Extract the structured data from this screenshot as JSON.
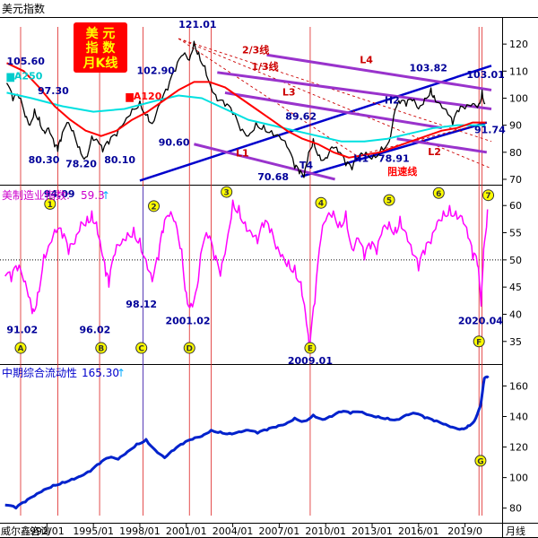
{
  "title": "美元指数",
  "badge": {
    "lines": [
      "美 元",
      "指 数",
      "月K线"
    ],
    "bg": "#ff0000",
    "fg": "#ffff00"
  },
  "colors": {
    "price": "#000000",
    "ma120": "#ff0000",
    "ma250": "#00e0e0",
    "blue": "#0000cc",
    "purple": "#9933cc",
    "dred": "#cc0000",
    "magenta": "#ff00ff",
    "cyan": "#00ffff",
    "circle": "#ffff00",
    "label": "#000099",
    "liquidity": "#0022cc"
  },
  "x_axis": {
    "ticks": [
      "1992/01",
      "1995/01",
      "1998/01",
      "2001/01",
      "2004/01",
      "2007/01",
      "2010/01",
      "2013/01",
      "2016/01",
      "2019/0"
    ],
    "first_tick_visible": "992/01",
    "left_label": "威尔鑫咨询",
    "right_label": "月线"
  },
  "chart_data": [
    {
      "type": "line",
      "title": "美元指数",
      "yticks": [
        70,
        80,
        90,
        100,
        110,
        120
      ],
      "ylim": [
        68,
        129
      ],
      "xlim": [
        1989.2,
        2020.7
      ],
      "series": [
        {
          "name": "",
          "role": "price",
          "x": [
            1989.4,
            1989.8,
            1990.2,
            1990.6,
            1990.9,
            1991.2,
            1991.5,
            1991.8,
            1992.1,
            1992.5,
            1992.7,
            1992.9,
            1993.3,
            1993.7,
            1994.1,
            1994.5,
            1994.9,
            1995.3,
            1995.6,
            1996.0,
            1996.5,
            1997.0,
            1997.5,
            1998.0,
            1998.5,
            1998.8,
            1999.3,
            1999.8,
            2000.3,
            2000.8,
            2001.2,
            2001.5,
            2001.8,
            2002.2,
            2002.6,
            2003.0,
            2003.5,
            2004.0,
            2004.5,
            2005.0,
            2005.5,
            2006.0,
            2006.5,
            2007.0,
            2007.5,
            2008.0,
            2008.3,
            2008.6,
            2008.9,
            2009.2,
            2009.6,
            2010.0,
            2010.4,
            2010.8,
            2011.3,
            2011.7,
            2012.2,
            2012.6,
            2013.1,
            2013.6,
            2014.1,
            2014.5,
            2014.8,
            2015.2,
            2015.6,
            2016.0,
            2016.4,
            2016.8,
            2017.0,
            2017.4,
            2017.9,
            2018.2,
            2018.6,
            2019.0,
            2019.5,
            2019.9,
            2020.1,
            2020.3
          ],
          "y": [
            105.6,
            99,
            100,
            93,
            90,
            96,
            93,
            88,
            89,
            82,
            80.3,
            84,
            91,
            88,
            82,
            78.2,
            86,
            84,
            80.1,
            83,
            86,
            91,
            96,
            99,
            94,
            90.6,
            98,
            103,
            110,
            116,
            114,
            121,
            117,
            112,
            104,
            99,
            97,
            94,
            88,
            86,
            91,
            90,
            88,
            86,
            82,
            74,
            72,
            70.68,
            80,
            85,
            79,
            78,
            82,
            80,
            75,
            73.5,
            79,
            80,
            78.91,
            82,
            84,
            96,
            98,
            97,
            99,
            96,
            100,
            103.82,
            101,
            98,
            94,
            90,
            95,
            96,
            98,
            98,
            103.01,
            98
          ],
          "color": "#000000"
        },
        {
          "name": "MA250",
          "role": "ma250",
          "x": [
            1989.4,
            1991,
            1993,
            1995,
            1997,
            1999,
            2000.5,
            2002,
            2003.5,
            2005,
            2006.5,
            2008,
            2009.5,
            2011,
            2012.5,
            2014,
            2015.5,
            2017,
            2018.5,
            2020.3
          ],
          "y": [
            102,
            100,
            97,
            95,
            96,
            99,
            101,
            100,
            96,
            92,
            90,
            88,
            86,
            84,
            84,
            85,
            87,
            89,
            90,
            90
          ],
          "color": "#00e0e0"
        },
        {
          "name": "MA120",
          "role": "ma120",
          "x": [
            1989.4,
            1990.5,
            1991.5,
            1992.5,
            1993.5,
            1994.5,
            1995.5,
            1996.5,
            1997.5,
            1998.5,
            1999.5,
            2000.5,
            2001.5,
            2002.5,
            2003.5,
            2004.5,
            2005.5,
            2006.5,
            2007.5,
            2008.5,
            2009.5,
            2010.5,
            2011.5,
            2012.5,
            2013.5,
            2014.5,
            2015.5,
            2016.5,
            2017.5,
            2018.5,
            2019.5,
            2020.3
          ],
          "y": [
            113,
            110,
            104,
            97,
            92,
            88,
            86,
            88,
            92,
            95,
            99,
            103,
            106,
            106,
            104,
            100,
            96,
            92,
            88,
            85,
            83,
            80,
            78,
            79,
            80,
            82,
            84,
            86,
            88,
            89,
            91,
            91
          ],
          "color": "#ff0000"
        }
      ],
      "annotations": [
        {
          "text": "105.60",
          "x": 1989.4,
          "y": 112.5,
          "color": "#000099"
        },
        {
          "text": "▆A250",
          "x": 1989.4,
          "y": 107,
          "color": "#00cccc"
        },
        {
          "text": "97.30",
          "x": 1991.4,
          "y": 101.5,
          "color": "#000099"
        },
        {
          "text": "80.30",
          "x": 1990.8,
          "y": 76,
          "color": "#000099"
        },
        {
          "text": "78.20",
          "x": 1993.2,
          "y": 74.5,
          "color": "#000099"
        },
        {
          "text": "80.10",
          "x": 1995.7,
          "y": 76,
          "color": "#000099"
        },
        {
          "text": "▆A120",
          "x": 1997.1,
          "y": 99.5,
          "color": "#ff0000"
        },
        {
          "text": "102.90",
          "x": 1997.8,
          "y": 109,
          "color": "#000099"
        },
        {
          "text": "90.60",
          "x": 1999.2,
          "y": 82.5,
          "color": "#000099"
        },
        {
          "text": "121.01",
          "x": 2000.5,
          "y": 126,
          "color": "#000099"
        },
        {
          "text": "2/3线",
          "x": 2004.6,
          "y": 116.5,
          "color": "#cc0000"
        },
        {
          "text": "1/3线",
          "x": 2005.2,
          "y": 110.5,
          "color": "#cc0000"
        },
        {
          "text": "L4",
          "x": 2012.2,
          "y": 113,
          "color": "#cc0000"
        },
        {
          "text": "L3",
          "x": 2007.2,
          "y": 101,
          "color": "#cc0000"
        },
        {
          "text": "103.82",
          "x": 2015.4,
          "y": 110,
          "color": "#000099"
        },
        {
          "text": "103.01",
          "x": 2019.1,
          "y": 107.5,
          "color": "#000099"
        },
        {
          "text": "H2",
          "x": 2013.8,
          "y": 98,
          "color": "#000099"
        },
        {
          "text": "89.62",
          "x": 2007.4,
          "y": 92,
          "color": "#000099"
        },
        {
          "text": "L1",
          "x": 2004.2,
          "y": 78.5,
          "color": "#cc0000"
        },
        {
          "text": "L2",
          "x": 2016.6,
          "y": 79,
          "color": "#cc0000"
        },
        {
          "text": "91.74",
          "x": 2019.6,
          "y": 87,
          "color": "#000099"
        },
        {
          "text": "T4",
          "x": 2008.3,
          "y": 74,
          "color": "#000099"
        },
        {
          "text": "H1",
          "x": 2011.8,
          "y": 76.5,
          "color": "#000099"
        },
        {
          "text": "78.91",
          "x": 2013.4,
          "y": 76.5,
          "color": "#000099"
        },
        {
          "text": "70.68",
          "x": 2005.6,
          "y": 69.6,
          "color": "#000099"
        },
        {
          "text": "阻速线",
          "x": 2014.0,
          "y": 71.6,
          "color": "#ff0000"
        }
      ],
      "trendlines": [
        {
          "color": "blue",
          "points": [
            [
              1998.0,
              69.5
            ],
            [
              2020.7,
              112
            ]
          ]
        },
        {
          "color": "blue",
          "points": [
            [
              2008.4,
              71
            ],
            [
              2020.4,
              91
            ]
          ]
        },
        {
          "color": "dred",
          "points": [
            [
              2000.5,
              122
            ],
            [
              2020.7,
              84
            ]
          ]
        },
        {
          "color": "dred",
          "points": [
            [
              2000.5,
              122
            ],
            [
              2020.7,
              74
            ]
          ]
        },
        {
          "color": "dred",
          "points": [
            [
              2000.5,
              122
            ],
            [
              2012.2,
              78
            ]
          ]
        },
        {
          "color": "dred",
          "points": [
            [
              2012.5,
              79.5
            ],
            [
              2020.4,
              91
            ]
          ]
        },
        {
          "color": "purple",
          "points": [
            [
              2003.0,
              109.5
            ],
            [
              2020.7,
              96
            ]
          ]
        },
        {
          "color": "purple",
          "points": [
            [
              2006.2,
              116
            ],
            [
              2020.7,
              103
            ]
          ]
        },
        {
          "color": "purple",
          "points": [
            [
              2003.5,
              102
            ],
            [
              2017.5,
              89
            ]
          ]
        },
        {
          "color": "purple",
          "points": [
            [
              2001.5,
              83
            ],
            [
              2010.6,
              70
            ]
          ]
        },
        {
          "color": "purple",
          "points": [
            [
              2014.6,
              85
            ],
            [
              2020.4,
              80
            ]
          ]
        }
      ]
    },
    {
      "type": "line",
      "title": "美制造业指数:",
      "latest_value": "59.3",
      "yticks": [
        35,
        40,
        45,
        50,
        55,
        60
      ],
      "ylim": [
        31.5,
        63.5
      ],
      "xlim": [
        1989.2,
        2020.7
      ],
      "reference_line": 50,
      "series": [
        {
          "name": "",
          "x": [
            1989.3,
            1989.7,
            1990.1,
            1990.5,
            1990.9,
            1991.1,
            1991.4,
            1991.8,
            1992.2,
            1992.6,
            1993.0,
            1993.4,
            1993.8,
            1994.2,
            1994.6,
            1994.9,
            1995.2,
            1995.5,
            1995.8,
            1996.0,
            1996.4,
            1996.8,
            1997.2,
            1997.6,
            1998.0,
            1998.4,
            1998.8,
            1999.2,
            1999.5,
            1999.9,
            2000.3,
            2000.7,
            2001.0,
            2001.3,
            2001.7,
            2002.0,
            2002.4,
            2002.8,
            2003.2,
            2003.6,
            2004.0,
            2004.4,
            2004.8,
            2005.2,
            2005.6,
            2006.0,
            2006.4,
            2006.8,
            2007.2,
            2007.6,
            2008.0,
            2008.4,
            2008.7,
            2008.95,
            2009.3,
            2009.7,
            2010.1,
            2010.5,
            2010.9,
            2011.3,
            2011.7,
            2012.1,
            2012.5,
            2012.9,
            2013.3,
            2013.7,
            2014.1,
            2014.5,
            2014.8,
            2015.2,
            2015.6,
            2016.0,
            2016.4,
            2016.8,
            2017.2,
            2017.6,
            2018.0,
            2018.4,
            2018.8,
            2019.2,
            2019.5,
            2019.8,
            2020.04,
            2020.2,
            2020.45
          ],
          "y": [
            47,
            46,
            48,
            46,
            43,
            41,
            44,
            51,
            53,
            55,
            54,
            51,
            53,
            57,
            58,
            59,
            57,
            52,
            47,
            45,
            51,
            53,
            55,
            56,
            54,
            50,
            46,
            50,
            55,
            58,
            57,
            52,
            44,
            42,
            45,
            52,
            54,
            50,
            47,
            53,
            61,
            60,
            57,
            55,
            53,
            56,
            55,
            52,
            51,
            50,
            49,
            46,
            40,
            33,
            42,
            54,
            58,
            59,
            57,
            59,
            52,
            54,
            50,
            52,
            51,
            56,
            57,
            56,
            58,
            55,
            51,
            48,
            51,
            53,
            57,
            59,
            60,
            59,
            58,
            54,
            50,
            49,
            41.5,
            52,
            59.3
          ],
          "color": "#ff00ff"
        }
      ],
      "value_labels": [
        {
          "text": "91.02",
          "x": 1990.4,
          "y": 36.5
        },
        {
          "text": "94.09",
          "x": 1992.8,
          "y": 61.5
        },
        {
          "text": "96.02",
          "x": 1995.1,
          "y": 36.5
        },
        {
          "text": "98.12",
          "x": 1998.1,
          "y": 41.2
        },
        {
          "text": "2001.02",
          "x": 2001.1,
          "y": 38.2
        },
        {
          "text": "2009.01",
          "x": 2009.0,
          "y": 30.8
        },
        {
          "text": "2020.04",
          "x": 2020.0,
          "y": 38.2
        }
      ],
      "markers": [
        {
          "label": "1",
          "x": 1992.2,
          "y": 60.3
        },
        {
          "label": "2",
          "x": 1998.9,
          "y": 59.9
        },
        {
          "label": "3",
          "x": 2003.6,
          "y": 62.5
        },
        {
          "label": "4",
          "x": 2009.7,
          "y": 60.5
        },
        {
          "label": "5",
          "x": 2014.1,
          "y": 61.0
        },
        {
          "label": "6",
          "x": 2017.3,
          "y": 62.3
        },
        {
          "label": "7",
          "x": 2020.5,
          "y": 61.9
        },
        {
          "label": "A",
          "x": 1990.3,
          "y": 33.8
        },
        {
          "label": "B",
          "x": 1995.5,
          "y": 33.8
        },
        {
          "label": "C",
          "x": 1998.1,
          "y": 33.8
        },
        {
          "label": "D",
          "x": 2001.2,
          "y": 33.8
        },
        {
          "label": "E",
          "x": 2009.0,
          "y": 33.8
        },
        {
          "label": "F",
          "x": 2019.9,
          "y": 35.0
        }
      ]
    },
    {
      "type": "line",
      "title": "中期综合流动性",
      "latest_value": "165.30",
      "yticks": [
        80,
        100,
        120,
        140,
        160
      ],
      "ylim": [
        71,
        172
      ],
      "xlim": [
        1989.2,
        2020.7
      ],
      "series": [
        {
          "name": "",
          "x": [
            1989.3,
            1990.0,
            1990.6,
            1991.2,
            1991.8,
            1992.4,
            1993.0,
            1993.6,
            1994.2,
            1994.8,
            1995.4,
            1996.0,
            1996.6,
            1997.2,
            1997.8,
            1998.4,
            1999.0,
            1999.6,
            2000.2,
            2000.8,
            2001.4,
            2002.0,
            2002.6,
            2003.2,
            2003.8,
            2004.4,
            2005.0,
            2005.6,
            2006.2,
            2006.8,
            2007.4,
            2008.0,
            2008.6,
            2009.2,
            2009.8,
            2010.4,
            2011.0,
            2011.6,
            2012.2,
            2012.8,
            2013.4,
            2014.0,
            2014.6,
            2015.2,
            2015.8,
            2016.4,
            2017.0,
            2017.6,
            2018.2,
            2018.8,
            2019.2,
            2019.6,
            2020.0,
            2020.25,
            2020.5
          ],
          "y": [
            82,
            80,
            84,
            88,
            92,
            95,
            97,
            99,
            101,
            104,
            109,
            113,
            112,
            117,
            122,
            125,
            118,
            113,
            118,
            122,
            125,
            127,
            131,
            130,
            129,
            130,
            131,
            129,
            131,
            133,
            135,
            139,
            137,
            141,
            138,
            140,
            143,
            142,
            143,
            141,
            140,
            139,
            138,
            141,
            142,
            139,
            137,
            135,
            133,
            132,
            134,
            137,
            147,
            165,
            165.3
          ],
          "color": "#0022cc"
        }
      ],
      "markers": [
        {
          "label": "G",
          "x": 2020.0,
          "y": 111
        }
      ]
    }
  ],
  "verticals": [
    1990.3,
    1992.7,
    1995.4,
    1998.2,
    2001.2,
    2002.6,
    2009.0,
    2019.9,
    2020.1
  ]
}
